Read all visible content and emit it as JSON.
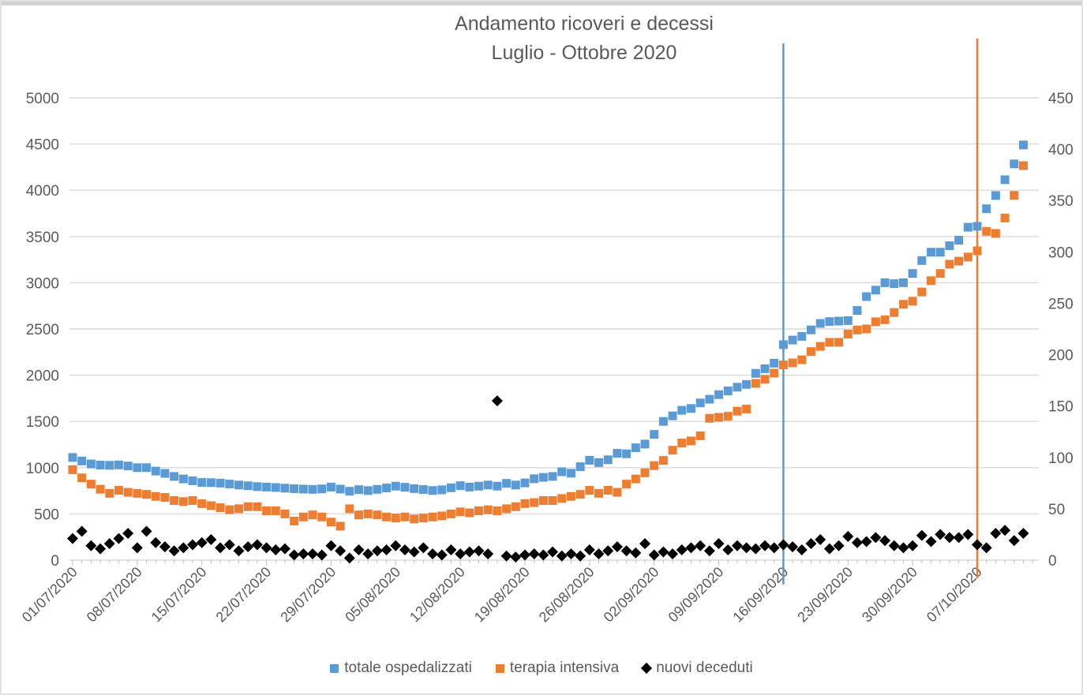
{
  "chart_data": {
    "type": "scatter",
    "title_line1": "Andamento ricoveri e decessi",
    "title_line2": "Luglio - Ottobre 2020",
    "x_unit": "day",
    "x_start": "01/07/2020",
    "x_end": "12/10/2020",
    "n_points": 104,
    "x_tick_labels": [
      "01/07/2020",
      "08/07/2020",
      "15/07/2020",
      "22/07/2020",
      "29/07/2020",
      "05/08/2020",
      "12/08/2020",
      "19/08/2020",
      "26/08/2020",
      "02/09/2020",
      "09/09/2020",
      "16/09/2020",
      "23/09/2020",
      "30/09/2020",
      "07/10/2020"
    ],
    "axes": {
      "left": {
        "min": 0,
        "max": 5000,
        "step": 500,
        "ticks": [
          0,
          500,
          1000,
          1500,
          2000,
          2500,
          3000,
          3500,
          4000,
          4500,
          5000
        ]
      },
      "right": {
        "min": 0,
        "max": 450,
        "step": 50,
        "ticks": [
          0,
          50,
          100,
          150,
          200,
          250,
          300,
          350,
          400,
          450
        ]
      }
    },
    "grid": "horizontal-left-axis",
    "legend_position": "bottom",
    "colors": {
      "text": "#595959",
      "gridline": "#d9d9d9",
      "tick": "#bfbfbf",
      "blue": "#5B9BD5",
      "orange": "#ED7D31",
      "black": "#000000"
    },
    "vertical_lines": [
      {
        "x_label": "16/09/2020",
        "day_index": 77,
        "color": "#5B9BD5"
      },
      {
        "x_label": "07/10/2020",
        "day_index": 98,
        "color": "#ED7D31"
      }
    ],
    "series": [
      {
        "name": "totale ospedalizzati",
        "axis": "left",
        "marker": "square",
        "color": "#5B9BD5",
        "values": [
          1110,
          1072,
          1040,
          1028,
          1025,
          1030,
          1018,
          1000,
          1000,
          963,
          938,
          905,
          878,
          858,
          840,
          838,
          833,
          823,
          812,
          804,
          795,
          790,
          785,
          778,
          772,
          768,
          765,
          770,
          790,
          768,
          745,
          762,
          752,
          765,
          780,
          800,
          788,
          773,
          763,
          753,
          760,
          782,
          805,
          790,
          800,
          812,
          800,
          830,
          812,
          835,
          880,
          895,
          905,
          955,
          940,
          1010,
          1080,
          1055,
          1085,
          1155,
          1150,
          1215,
          1255,
          1360,
          1500,
          1560,
          1620,
          1640,
          1700,
          1740,
          1790,
          1830,
          1870,
          1900,
          2020,
          2070,
          2130,
          2330,
          2380,
          2420,
          2490,
          2560,
          2580,
          2585,
          2590,
          2700,
          2850,
          2920,
          3000,
          2990,
          3000,
          3100,
          3240,
          3330,
          3330,
          3400,
          3460,
          3600,
          3610,
          3800,
          3943,
          4114,
          4285,
          4490
        ]
      },
      {
        "name": "terapia intensiva",
        "axis": "right",
        "marker": "square",
        "color": "#ED7D31",
        "values": [
          88,
          80,
          74,
          69,
          65,
          68,
          66,
          65,
          64,
          62,
          61,
          58,
          57,
          58,
          55,
          53,
          51,
          49,
          50,
          52,
          52,
          48,
          48,
          45,
          38,
          42,
          44,
          42,
          37,
          33,
          50,
          44,
          45,
          44,
          42,
          41,
          42,
          40,
          41,
          42,
          43,
          45,
          47,
          46,
          48,
          49,
          48,
          50,
          52,
          55,
          56,
          58,
          58,
          60,
          62,
          64,
          68,
          65,
          68,
          66,
          74,
          79,
          85,
          92,
          97,
          107,
          114,
          116,
          121,
          138,
          139,
          140,
          145,
          147,
          172,
          176,
          182,
          190,
          192,
          195,
          203,
          208,
          212,
          212,
          220,
          224,
          225,
          232,
          234,
          241,
          249,
          252,
          261,
          272,
          279,
          288,
          291,
          295,
          301,
          320,
          318,
          333,
          355,
          384
        ]
      },
      {
        "name": "nuovi deceduti",
        "axis": "right",
        "marker": "diamond",
        "color": "#000000",
        "values": [
          21,
          28,
          14,
          11,
          16,
          21,
          26,
          12,
          28,
          17,
          13,
          9,
          12,
          15,
          17,
          20,
          12,
          15,
          9,
          13,
          15,
          12,
          10,
          11,
          5,
          6,
          6,
          5,
          14,
          9,
          2,
          10,
          6,
          9,
          10,
          14,
          10,
          8,
          12,
          6,
          5,
          10,
          6,
          8,
          9,
          6,
          155,
          4,
          3,
          5,
          6,
          5,
          8,
          4,
          6,
          4,
          10,
          6,
          9,
          13,
          9,
          7,
          16,
          5,
          8,
          6,
          10,
          12,
          14,
          9,
          16,
          10,
          14,
          12,
          11,
          14,
          12,
          15,
          13,
          10,
          16,
          20,
          11,
          14,
          23,
          17,
          18,
          22,
          19,
          14,
          12,
          14,
          24,
          18,
          25,
          22,
          22,
          25,
          15,
          12,
          26,
          29,
          19,
          26
        ]
      }
    ]
  }
}
